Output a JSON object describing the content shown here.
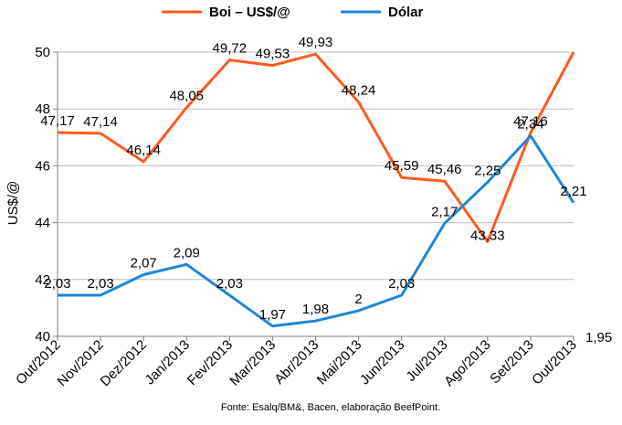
{
  "chart_data": {
    "type": "line",
    "title": "",
    "xlabel": "",
    "ylabel": "US$/@",
    "categories": [
      "Out/2012",
      "Nov/2012",
      "Dez/2012",
      "Jan/2013",
      "Fev/2013",
      "Mar/2013",
      "Abr/2013",
      "Mai/2013",
      "Jun/2013",
      "Jul/2013",
      "Ago/2013",
      "Set/2013",
      "Out/2013"
    ],
    "ylim": [
      40,
      50
    ],
    "yticks": [
      "40",
      "42",
      "44",
      "46",
      "48",
      "50"
    ],
    "grid": true,
    "legend_position": "top",
    "series": [
      {
        "name": "Boi – US$/@",
        "color": "#ff5a1f",
        "values": [
          47.17,
          47.14,
          46.14,
          48.05,
          49.72,
          49.53,
          49.93,
          48.24,
          45.59,
          45.46,
          43.33,
          47.16,
          50.0
        ],
        "labels": [
          "47,17",
          "47,14",
          "46,14",
          "48,05",
          "49,72",
          "49,53",
          "49,93",
          "48,24",
          "45,59",
          "45,46",
          "43,33",
          "47,16",
          ""
        ]
      },
      {
        "name": "Dólar",
        "color": "#1f86d6",
        "values": [
          2.03,
          2.03,
          2.07,
          2.09,
          2.03,
          1.97,
          1.98,
          2.0,
          2.03,
          2.17,
          2.25,
          2.34,
          2.21
        ],
        "labels": [
          "2,03",
          "2,03",
          "2,07",
          "2,09",
          "2,03",
          "1,97",
          "1,98",
          "2",
          "2,03",
          "2,17",
          "2,25",
          "2,34",
          "2,21"
        ]
      }
    ],
    "secondary_axis_label": "1,95",
    "annotation": "Fonte: Esalq/BM&, Bacen, elaboração BeefPoint."
  }
}
